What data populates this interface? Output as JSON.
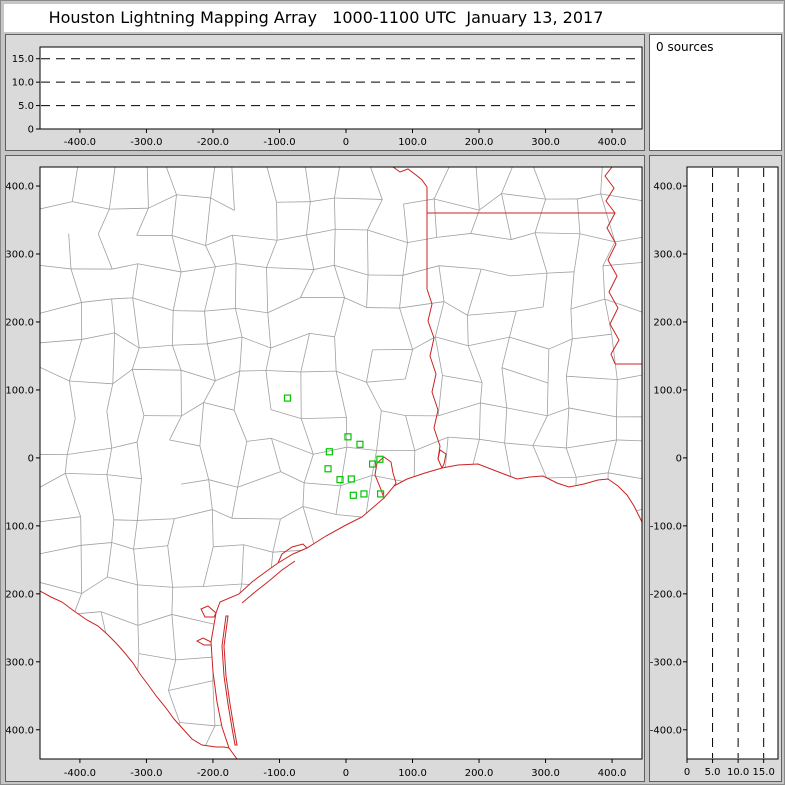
{
  "window": {
    "title": "Houston Lightning Mapping Array   1000-1100 UTC  January 13, 2017"
  },
  "sources_counter": {
    "text": "0 sources"
  },
  "colors": {
    "frame_bg": "#c6c6c6",
    "panel_bg": "#dadada",
    "panel_border": "#5f5f5f",
    "plot_bg": "#ffffff",
    "axis": "#000000",
    "county_line": "#a0a0a0",
    "state_line": "#cc2222",
    "station": "#00c400"
  },
  "axes": {
    "ew_km": {
      "ticks": [
        {
          "v": -400,
          "label": "-400.0"
        },
        {
          "v": -300,
          "label": "-300.0"
        },
        {
          "v": -200,
          "label": "-200.0"
        },
        {
          "v": -100,
          "label": "-100.0"
        },
        {
          "v": 0,
          "label": "0"
        },
        {
          "v": 100,
          "label": "100.0"
        },
        {
          "v": 200,
          "label": "200.0"
        },
        {
          "v": 300,
          "label": "300.0"
        },
        {
          "v": 400,
          "label": "400.0"
        }
      ]
    },
    "ns_km": {
      "ticks": [
        {
          "v": 400,
          "label": "400.0"
        },
        {
          "v": 300,
          "label": "300.0"
        },
        {
          "v": 200,
          "label": "200.0"
        },
        {
          "v": 100,
          "label": "100.0"
        },
        {
          "v": 0,
          "label": "0"
        },
        {
          "v": -100,
          "label": "-100.0"
        },
        {
          "v": -200,
          "label": "-200.0"
        },
        {
          "v": -300,
          "label": "-300.0"
        },
        {
          "v": -400,
          "label": "-400.0"
        }
      ]
    },
    "alt_km": {
      "ticks": [
        {
          "v": 0,
          "label": "0"
        },
        {
          "v": 5,
          "label": "5.0"
        },
        {
          "v": 10,
          "label": "10.0"
        },
        {
          "v": 15,
          "label": "15.0"
        }
      ]
    }
  },
  "chart_data": {
    "title": "Houston Lightning Mapping Array   1000-1100 UTC  January 13, 2017",
    "sources_count": 0,
    "panels": [
      {
        "name": "altitude-vs-eastwest",
        "type": "scatter",
        "xlim": [
          -460,
          445
        ],
        "ylim": [
          0,
          17.5
        ],
        "x_ticks": [
          -400,
          -300,
          -200,
          -100,
          0,
          100,
          200,
          300,
          400
        ],
        "y_ticks": [
          0,
          5,
          10,
          15
        ],
        "y_gridlines": [
          5,
          10,
          15
        ],
        "points": []
      },
      {
        "name": "plan-view",
        "type": "scatter",
        "xlim": [
          -460,
          445
        ],
        "ylim": [
          -443,
          428
        ],
        "x_ticks": [
          -400,
          -300,
          -200,
          -100,
          0,
          100,
          200,
          300,
          400
        ],
        "y_ticks": [
          400,
          300,
          200,
          100,
          0,
          -100,
          -200,
          -300,
          -400
        ],
        "points": [],
        "stations_km": [
          [
            -88,
            88
          ],
          [
            3,
            31
          ],
          [
            -25,
            9
          ],
          [
            21,
            20
          ],
          [
            -27,
            -16
          ],
          [
            -9,
            -32
          ],
          [
            8,
            -31
          ],
          [
            40,
            -9
          ],
          [
            51,
            -2
          ],
          [
            11,
            -55
          ],
          [
            27,
            -53
          ],
          [
            52,
            -53
          ]
        ]
      },
      {
        "name": "altitude-vs-northsouth",
        "type": "scatter",
        "xlim": [
          0,
          17.8
        ],
        "ylim": [
          -443,
          428
        ],
        "x_ticks": [
          0,
          5,
          10,
          15
        ],
        "x_gridlines": [
          5,
          10,
          15
        ],
        "y_ticks": [
          400,
          300,
          200,
          100,
          0,
          -100,
          -200,
          -300,
          -400
        ],
        "points": []
      }
    ]
  }
}
